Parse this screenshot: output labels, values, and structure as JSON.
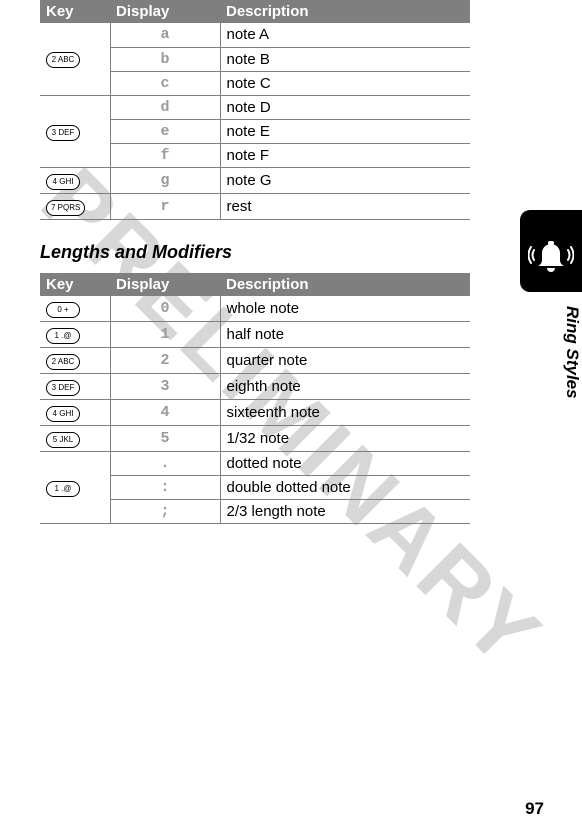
{
  "watermark": "PRELIMINARY",
  "side_label": "Ring Styles",
  "page_number": "97",
  "header_labels": {
    "key": "Key",
    "display": "Display",
    "description": "Description"
  },
  "section2_title": "Lengths and Modifiers",
  "table1": {
    "groups": [
      {
        "key": "2 ABC",
        "rows": [
          {
            "disp": "a",
            "desc": "note A"
          },
          {
            "disp": "b",
            "desc": "note B"
          },
          {
            "disp": "c",
            "desc": "note C"
          }
        ]
      },
      {
        "key": "3 DEF",
        "rows": [
          {
            "disp": "d",
            "desc": "note D"
          },
          {
            "disp": "e",
            "desc": "note E"
          },
          {
            "disp": "f",
            "desc": "note F"
          }
        ]
      },
      {
        "key": "4 GHI",
        "rows": [
          {
            "disp": "g",
            "desc": "note G"
          }
        ]
      },
      {
        "key": "7 PQRS",
        "rows": [
          {
            "disp": "r",
            "desc": "rest"
          }
        ]
      }
    ]
  },
  "table2": {
    "groups": [
      {
        "key": "0 +",
        "rows": [
          {
            "disp": "0",
            "desc": "whole note"
          }
        ]
      },
      {
        "key": "1 .@",
        "rows": [
          {
            "disp": "1",
            "desc": "half note"
          }
        ]
      },
      {
        "key": "2 ABC",
        "rows": [
          {
            "disp": "2",
            "desc": "quarter note"
          }
        ]
      },
      {
        "key": "3 DEF",
        "rows": [
          {
            "disp": "3",
            "desc": "eighth note"
          }
        ]
      },
      {
        "key": "4 GHI",
        "rows": [
          {
            "disp": "4",
            "desc": "sixteenth note"
          }
        ]
      },
      {
        "key": "5 JKL",
        "rows": [
          {
            "disp": "5",
            "desc": "1/32 note"
          }
        ]
      },
      {
        "key": "1 .@",
        "rows": [
          {
            "disp": ".",
            "desc": "dotted note"
          },
          {
            "disp": ":",
            "desc": "double dotted note"
          },
          {
            "disp": ";",
            "desc": "2/3 length note"
          }
        ]
      }
    ]
  }
}
